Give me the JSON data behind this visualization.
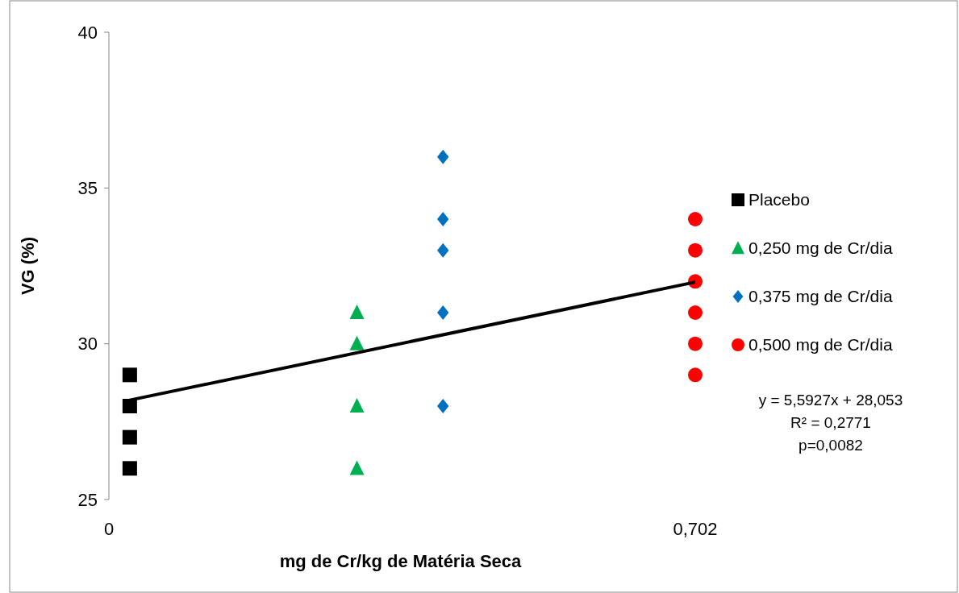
{
  "chart_data": {
    "type": "scatter",
    "xlabel": "mg de Cr/kg de Matéria Seca",
    "ylabel": "VG (%)",
    "xlim": [
      0,
      0.702
    ],
    "xticks": [
      0,
      {
        "value": 0.702,
        "label": "0,702"
      }
    ],
    "ylim": [
      25,
      40
    ],
    "yticks": [
      25,
      30,
      35,
      40
    ],
    "grid": false,
    "legend": "right",
    "series": [
      {
        "name": "Placebo",
        "color": "#000000",
        "marker": "square",
        "x": [
          0.025,
          0.025,
          0.025,
          0.025
        ],
        "values": [
          29,
          28,
          27,
          26
        ]
      },
      {
        "name": "0,250 mg de Cr/dia",
        "color": "#00b050",
        "marker": "triangle",
        "x": [
          0.297,
          0.297,
          0.297,
          0.297
        ],
        "values": [
          31,
          30,
          28,
          26
        ]
      },
      {
        "name": "0,375 mg de Cr/dia",
        "color": "#0070c0",
        "marker": "diamond",
        "x": [
          0.4,
          0.4,
          0.4,
          0.4,
          0.4
        ],
        "values": [
          36,
          34,
          33,
          31,
          28
        ]
      },
      {
        "name": "0,500 mg de Cr/dia",
        "color": "#ff0000",
        "marker": "circle",
        "x": [
          0.702,
          0.702,
          0.702,
          0.702,
          0.702,
          0.702
        ],
        "values": [
          34,
          33,
          32,
          31,
          30,
          29
        ]
      },
      {
        "type": "line",
        "color": "#000000",
        "marker": "none",
        "x": [
          0.025,
          0.702
        ],
        "values": [
          28.19,
          31.98
        ]
      }
    ],
    "annotations": [
      "y = 5,5927x + 28,053",
      "R² = 0,2771",
      "p=0,0082"
    ]
  }
}
